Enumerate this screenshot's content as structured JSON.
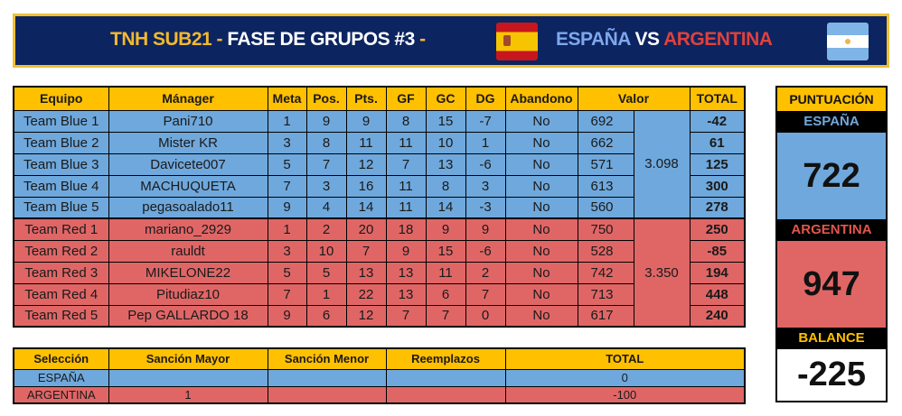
{
  "banner": {
    "tournament": "TNH SUB21",
    "sep1": " - ",
    "phase": "FASE DE GRUPOS #3",
    "sep2": " -",
    "team_home": "ESPAÑA",
    "vs": " VS ",
    "team_away": "ARGENTINA",
    "flag_home": "spain-flag",
    "flag_away": "argentina-flag"
  },
  "colors": {
    "navy": "#0c2460",
    "gold": "#ffc000",
    "blue": "#6fa8dc",
    "red": "#e06666"
  },
  "main_table": {
    "headers": [
      "Equipo",
      "Mánager",
      "Meta",
      "Pos.",
      "Pts.",
      "GF",
      "GC",
      "DG",
      "Abandono",
      "Valor",
      "TOTAL"
    ],
    "rows": [
      [
        "Team Blue 1",
        "Pani710",
        "1",
        "9",
        "9",
        "8",
        "15",
        "-7",
        "No",
        "692",
        "-42"
      ],
      [
        "Team Blue 2",
        "Mister KR",
        "3",
        "8",
        "11",
        "11",
        "10",
        "1",
        "No",
        "662",
        "61"
      ],
      [
        "Team Blue 3",
        "Davicete007",
        "5",
        "7",
        "12",
        "7",
        "13",
        "-6",
        "No",
        "571",
        "125"
      ],
      [
        "Team Blue 4",
        "MACHUQUETA",
        "7",
        "3",
        "16",
        "11",
        "8",
        "3",
        "No",
        "613",
        "300"
      ],
      [
        "Team Blue 5",
        "pegasoalado11",
        "9",
        "4",
        "14",
        "11",
        "14",
        "-3",
        "No",
        "560",
        "278"
      ],
      [
        "Team Red 1",
        "mariano_2929",
        "1",
        "2",
        "20",
        "18",
        "9",
        "9",
        "No",
        "750",
        "250"
      ],
      [
        "Team Red 2",
        "rauldt",
        "3",
        "10",
        "7",
        "9",
        "15",
        "-6",
        "No",
        "528",
        "-85"
      ],
      [
        "Team Red 3",
        "MIKELONE22",
        "5",
        "5",
        "13",
        "13",
        "11",
        "2",
        "No",
        "742",
        "194"
      ],
      [
        "Team Red 4",
        "Pitudiaz10",
        "7",
        "1",
        "22",
        "13",
        "6",
        "7",
        "No",
        "713",
        "448"
      ],
      [
        "Team Red 5",
        "Pep GALLARDO 18",
        "9",
        "6",
        "12",
        "7",
        "7",
        "0",
        "No",
        "617",
        "240"
      ]
    ],
    "valor_total_blue": "3.098",
    "valor_total_red": "3.350"
  },
  "penalties": {
    "headers": [
      "Selección",
      "Sanción Mayor",
      "Sanción Menor",
      "Reemplazos",
      "TOTAL"
    ],
    "rows": [
      [
        "ESPAÑA",
        "",
        "",
        "",
        "0"
      ],
      [
        "ARGENTINA",
        "1",
        "",
        "",
        "-100"
      ]
    ]
  },
  "score": {
    "title": "PUNTUACIÓN",
    "home_label": "ESPAÑA",
    "home_value": "722",
    "away_label": "ARGENTINA",
    "away_value": "947",
    "balance_label": "BALANCE",
    "balance_value": "-225"
  }
}
